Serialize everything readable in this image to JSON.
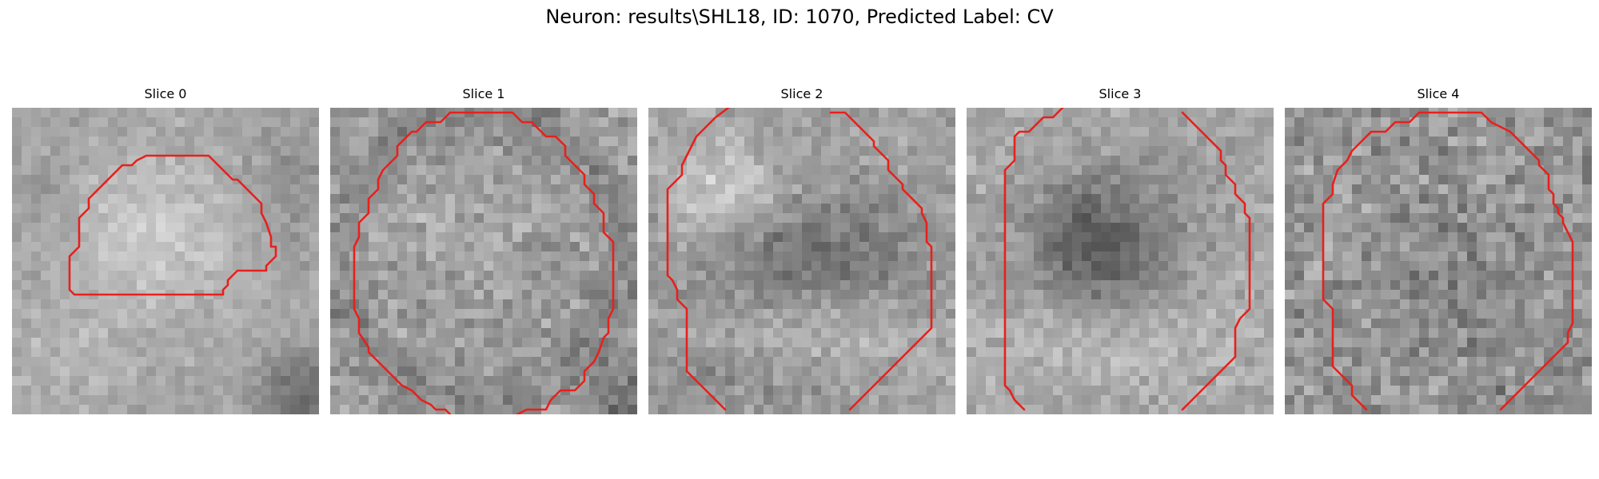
{
  "figure": {
    "title": "Neuron: results\\SHL18, ID: 1070, Predicted Label: CV"
  },
  "contour_color": "#e8201c",
  "slices": [
    {
      "title": "Slice 0"
    },
    {
      "title": "Slice 1"
    },
    {
      "title": "Slice 2"
    },
    {
      "title": "Slice 3"
    },
    {
      "title": "Slice 4"
    }
  ]
}
